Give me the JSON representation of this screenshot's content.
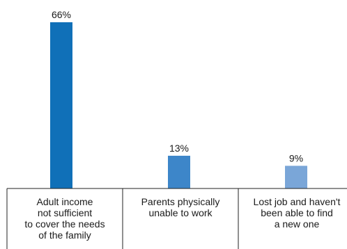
{
  "chart_data": {
    "type": "bar",
    "categories": [
      "Adult income\nnot sufficient\nto cover the needs\nof the family",
      "Parents physically\nunable to work",
      "Lost job and haven't\nbeen able to find\na new one"
    ],
    "values": [
      66,
      13,
      9
    ],
    "value_labels": [
      "66%",
      "13%",
      "9%"
    ],
    "bar_colors": [
      "#1070b8",
      "#3d86c9",
      "#7aa6d8"
    ],
    "ylim": [
      0,
      70
    ],
    "grid": false,
    "legend": "none"
  }
}
